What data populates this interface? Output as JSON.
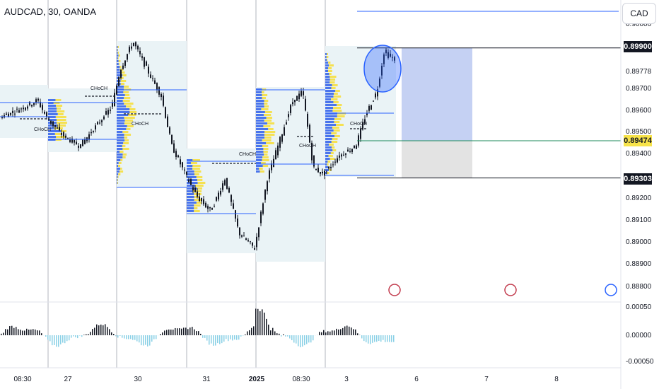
{
  "symbol": "AUDCAD, 30, OANDA",
  "currency_button": "CAD",
  "price_tags": {
    "top": "0.89900",
    "mid": "0.89474",
    "bottom": "0.89303"
  },
  "chart_data": {
    "type": "candlestick",
    "title": "AUDCAD, 30, OANDA",
    "y_axis_ticks": [
      "0.90000",
      "0.89900",
      "0.89778",
      "0.89700",
      "0.89600",
      "0.89500",
      "0.89474",
      "0.89400",
      "0.89303",
      "0.89200",
      "0.89100",
      "0.89000",
      "0.88900",
      "0.88800"
    ],
    "x_axis_ticks": [
      "08:30",
      "27",
      "30",
      "31",
      "2025",
      "08:30",
      "3",
      "6",
      "7",
      "8"
    ],
    "choch_labels": [
      "CHoCH",
      "CHoCH",
      "CHoCH",
      "CHoCH",
      "CHoCH",
      "CHoCH"
    ],
    "oscillator_ticks": [
      "0.00050",
      "0.00000",
      "-0.00050"
    ],
    "levels": {
      "stop": 0.899,
      "entry": 0.89474,
      "target": 0.89303
    },
    "colors": {
      "candle": "#131722",
      "profile_blue": "#4a74ec",
      "profile_yellow": "#f5e152",
      "level_blue": "#2962ff",
      "zone_blue": "#c5d1f3",
      "zone_gray": "#e3e3e3",
      "osc_pos": "#131722",
      "osc_neg": "#8ad0e6"
    }
  }
}
